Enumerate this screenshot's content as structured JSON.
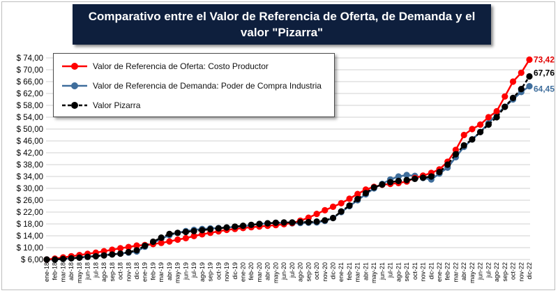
{
  "chart_data": {
    "type": "line",
    "title": "Comparativo entre el Valor de Referencia de Oferta, de Demanda y el valor \"Pizarra\"",
    "xlabel": "",
    "ylabel": "",
    "ylim": [
      6,
      74
    ],
    "yticks": [
      "$ 6,00",
      "$ 10,00",
      "$ 14,00",
      "$ 18,00",
      "$ 22,00",
      "$ 26,00",
      "$ 30,00",
      "$ 34,00",
      "$ 38,00",
      "$ 42,00",
      "$ 46,00",
      "$ 50,00",
      "$ 54,00",
      "$ 58,00",
      "$ 62,00",
      "$ 66,00",
      "$ 70,00",
      "$ 74,00"
    ],
    "ytick_values": [
      6,
      10,
      14,
      18,
      22,
      26,
      30,
      34,
      38,
      42,
      46,
      50,
      54,
      58,
      62,
      66,
      70,
      74
    ],
    "grid": true,
    "legend_position": "top-left",
    "categories": [
      "ene-18",
      "feb-18",
      "mar-18",
      "abr-18",
      "may-18",
      "jun-18",
      "jul-18",
      "ago-18",
      "sep-18",
      "oct-18",
      "nov-18",
      "dic-18",
      "ene-19",
      "feb-19",
      "mar-19",
      "abr-19",
      "may-19",
      "jun-19",
      "jul-19",
      "ago-19",
      "sep-19",
      "oct-19",
      "nov-19",
      "dic-19",
      "ene-20",
      "feb-20",
      "mar-20",
      "abr-20",
      "may-20",
      "jun-20",
      "jul-20",
      "ago-20",
      "sep-20",
      "oct-20",
      "nov-20",
      "dic-20",
      "ene-21",
      "feb-21",
      "mar-21",
      "abr-21",
      "may-21",
      "jun-21",
      "jul-21",
      "ago-21",
      "sep-21",
      "oct-21",
      "nov-21",
      "dic-21",
      "ene-22",
      "feb-22",
      "mar-22",
      "abr-22",
      "may-22",
      "jun-22",
      "jul-22",
      "ago-22",
      "sep-22",
      "oct-22",
      "nov-22",
      "dic-22"
    ],
    "series": [
      {
        "name": "Valor de Referencia de Oferta: Costo Productor",
        "color": "#ff0000",
        "end_label": "73,42",
        "values": [
          6.0,
          6.3,
          6.7,
          7.1,
          7.5,
          7.9,
          8.3,
          8.8,
          9.3,
          9.8,
          10.2,
          10.7,
          10.9,
          11.2,
          11.6,
          12.1,
          12.7,
          13.2,
          13.9,
          14.5,
          15.0,
          15.5,
          16.0,
          16.3,
          16.6,
          16.9,
          17.1,
          17.4,
          17.6,
          17.9,
          18.3,
          19.1,
          20.1,
          21.4,
          22.6,
          23.8,
          25.0,
          26.5,
          28.1,
          29.6,
          30.5,
          31.2,
          31.5,
          31.8,
          32.3,
          33.5,
          34.3,
          35.2,
          36.4,
          39.0,
          43.0,
          48.0,
          50.0,
          51.5,
          54.0,
          56.0,
          61.0,
          66.0,
          69.0,
          73.42
        ]
      },
      {
        "name": "Valor de Referencia de Demanda: Poder de Compra Industria",
        "color": "#3f6e9c",
        "end_label": "64,45",
        "values": [
          6.0,
          6.0,
          6.2,
          6.4,
          6.7,
          7.0,
          7.2,
          7.5,
          7.8,
          8.0,
          8.3,
          8.7,
          10.3,
          11.6,
          13.0,
          14.2,
          15.0,
          15.6,
          16.0,
          16.3,
          16.5,
          16.6,
          16.8,
          17.0,
          17.2,
          17.6,
          18.0,
          18.2,
          18.4,
          18.3,
          18.2,
          18.3,
          18.4,
          18.5,
          19.0,
          20.0,
          22.0,
          24.0,
          26.0,
          28.0,
          30.0,
          31.5,
          33.0,
          34.0,
          34.5,
          34.2,
          33.5,
          33.0,
          35.0,
          37.0,
          40.5,
          44.0,
          46.5,
          49.0,
          52.0,
          55.0,
          57.5,
          60.0,
          62.5,
          64.45
        ]
      },
      {
        "name": "Valor Pizarra",
        "color": "#000000",
        "end_label": "67,76",
        "values": [
          6.0,
          6.0,
          6.2,
          6.4,
          6.6,
          6.9,
          7.1,
          7.4,
          7.7,
          8.0,
          8.5,
          9.1,
          10.6,
          12.0,
          13.4,
          14.6,
          15.0,
          15.3,
          15.6,
          15.9,
          16.2,
          16.5,
          16.8,
          17.1,
          17.4,
          17.7,
          18.0,
          18.2,
          18.4,
          18.5,
          18.5,
          18.6,
          18.6,
          18.8,
          19.2,
          20.0,
          22.2,
          24.2,
          26.4,
          28.4,
          30.3,
          31.3,
          32.1,
          32.5,
          32.8,
          33.2,
          33.6,
          34.0,
          35.5,
          38.0,
          41.5,
          44.5,
          46.5,
          49.0,
          51.5,
          54.0,
          57.5,
          60.5,
          63.5,
          67.76
        ]
      }
    ]
  }
}
